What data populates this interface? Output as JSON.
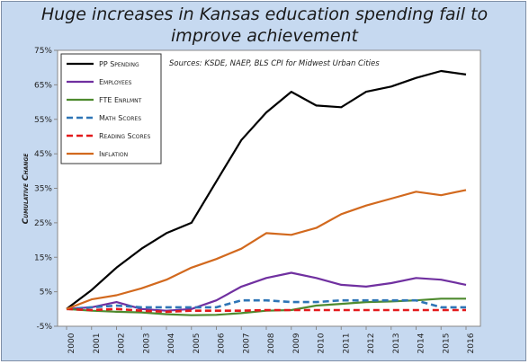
{
  "chart_data": {
    "type": "line",
    "title": "Huge increases in Kansas education spending fail to improve achievement",
    "title_lines": [
      "Huge increases in Kansas education spending fail to",
      "improve achievement"
    ],
    "annotation": "Sources: KSDE, NAEP, BLS CPI for Midwest Urban Cities",
    "ylabel": "Cumulative Change",
    "xlabel": "",
    "x": [
      "2000",
      "2001",
      "2002",
      "2003",
      "2004",
      "2005",
      "2006",
      "2007",
      "2008",
      "2009",
      "2010",
      "2011",
      "2012",
      "2013",
      "2014",
      "2015",
      "2016"
    ],
    "ylim": [
      -5,
      75
    ],
    "yticks": [
      -5,
      5,
      15,
      25,
      35,
      45,
      55,
      65,
      75
    ],
    "ytick_labels": [
      "-5%",
      "5%",
      "15%",
      "25%",
      "35%",
      "45%",
      "55%",
      "65%",
      "75%"
    ],
    "grid": false,
    "legend_position": "top-left",
    "series": [
      {
        "name": "PP Spending",
        "color": "#000000",
        "dash": "solid",
        "values": [
          0,
          5.5,
          12,
          17.5,
          22,
          25,
          37,
          49,
          57,
          63,
          59,
          58.5,
          63,
          64.5,
          67,
          69,
          68
        ]
      },
      {
        "name": "Employees",
        "color": "#7030a0",
        "dash": "solid",
        "values": [
          0,
          0.5,
          2,
          0,
          -0.5,
          0,
          2.5,
          6.5,
          9,
          10.5,
          9,
          7,
          6.5,
          7.5,
          9,
          8.5,
          7
        ]
      },
      {
        "name": "FTE Enrlmnt",
        "color": "#4e8a2e",
        "dash": "solid",
        "values": [
          0,
          -0.5,
          -0.8,
          -1,
          -1.5,
          -1.8,
          -1.7,
          -1.2,
          -0.5,
          -0.3,
          1,
          1.5,
          2,
          2.2,
          2.5,
          3,
          3
        ]
      },
      {
        "name": "Math Scores",
        "color": "#2e75b6",
        "dash": "dashed",
        "values": [
          0,
          0.5,
          1,
          0.5,
          0.5,
          0.5,
          0.5,
          2.5,
          2.5,
          2,
          2,
          2.5,
          2.5,
          2.5,
          2.5,
          0.5,
          0.5
        ]
      },
      {
        "name": "Reading Scores",
        "color": "#e31a1c",
        "dash": "dashed",
        "values": [
          0,
          -0.3,
          0,
          -0.5,
          -0.8,
          -0.5,
          -0.5,
          -0.5,
          -0.3,
          -0.3,
          -0.3,
          -0.3,
          -0.3,
          -0.3,
          -0.3,
          -0.3,
          -0.3
        ]
      },
      {
        "name": "Inflation",
        "color": "#d2691e",
        "dash": "solid",
        "values": [
          0,
          2.8,
          4,
          6,
          8.5,
          12,
          14.5,
          17.5,
          22,
          21.5,
          23.5,
          27.5,
          30,
          32,
          34,
          33,
          34.5
        ]
      }
    ]
  }
}
